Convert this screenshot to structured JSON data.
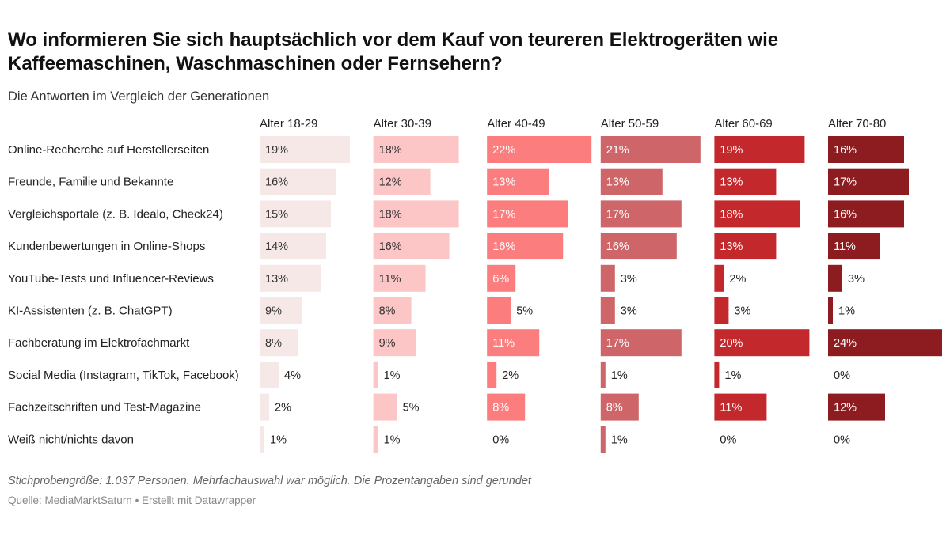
{
  "title": "Wo informieren Sie sich hauptsächlich vor dem Kauf von teureren Elektrogeräten wie Kaffeemaschinen, Waschmaschinen oder Fernsehern?",
  "subtitle": "Die Antworten im Vergleich der Generationen",
  "note": "Stichprobengröße: 1.037 Personen. Mehrfachauswahl war möglich. Die Prozentangaben sind gerundet",
  "source": "Quelle: MediaMarktSaturn • Erstellt mit Datawrapper",
  "chart_data": {
    "type": "bar",
    "orientation": "horizontal",
    "layout": "small-multiples",
    "unit": "%",
    "categories": [
      "Online-Recherche auf Herstellerseiten",
      "Freunde, Familie und Bekannte",
      "Vergleichsportale (z. B. Idealo, Check24)",
      "Kundenbewertungen in Online-Shops",
      "YouTube-Tests und Influencer-Reviews",
      "KI-Assistenten (z. B. ChatGPT)",
      "Fachberatung im Elektrofachmarkt",
      "Social Media (Instagram, TikTok, Facebook)",
      "Fachzeitschriften und Test-Magazine",
      "Weiß nicht/nichts davon"
    ],
    "series": [
      {
        "name": "Alter 18-29",
        "color": "#f7e8e8",
        "text": "#333333",
        "values": [
          19,
          16,
          15,
          14,
          13,
          9,
          8,
          4,
          2,
          1
        ]
      },
      {
        "name": "Alter 30-39",
        "color": "#fcc6c6",
        "text": "#333333",
        "values": [
          18,
          12,
          18,
          16,
          11,
          8,
          9,
          1,
          5,
          1
        ]
      },
      {
        "name": "Alter 40-49",
        "color": "#fb7d7d",
        "text": "#ffffff",
        "values": [
          22,
          13,
          17,
          16,
          6,
          5,
          11,
          2,
          8,
          0
        ]
      },
      {
        "name": "Alter 50-59",
        "color": "#cd6569",
        "text": "#ffffff",
        "values": [
          21,
          13,
          17,
          16,
          3,
          3,
          17,
          1,
          8,
          1
        ]
      },
      {
        "name": "Alter 60-69",
        "color": "#c2282c",
        "text": "#ffffff",
        "values": [
          19,
          13,
          18,
          13,
          2,
          3,
          20,
          1,
          11,
          0
        ]
      },
      {
        "name": "Alter 70-80",
        "color": "#8c1c1f",
        "text": "#ffffff",
        "values": [
          16,
          17,
          16,
          11,
          3,
          1,
          24,
          0,
          12,
          0
        ]
      }
    ],
    "xlim": [
      0,
      24
    ]
  }
}
